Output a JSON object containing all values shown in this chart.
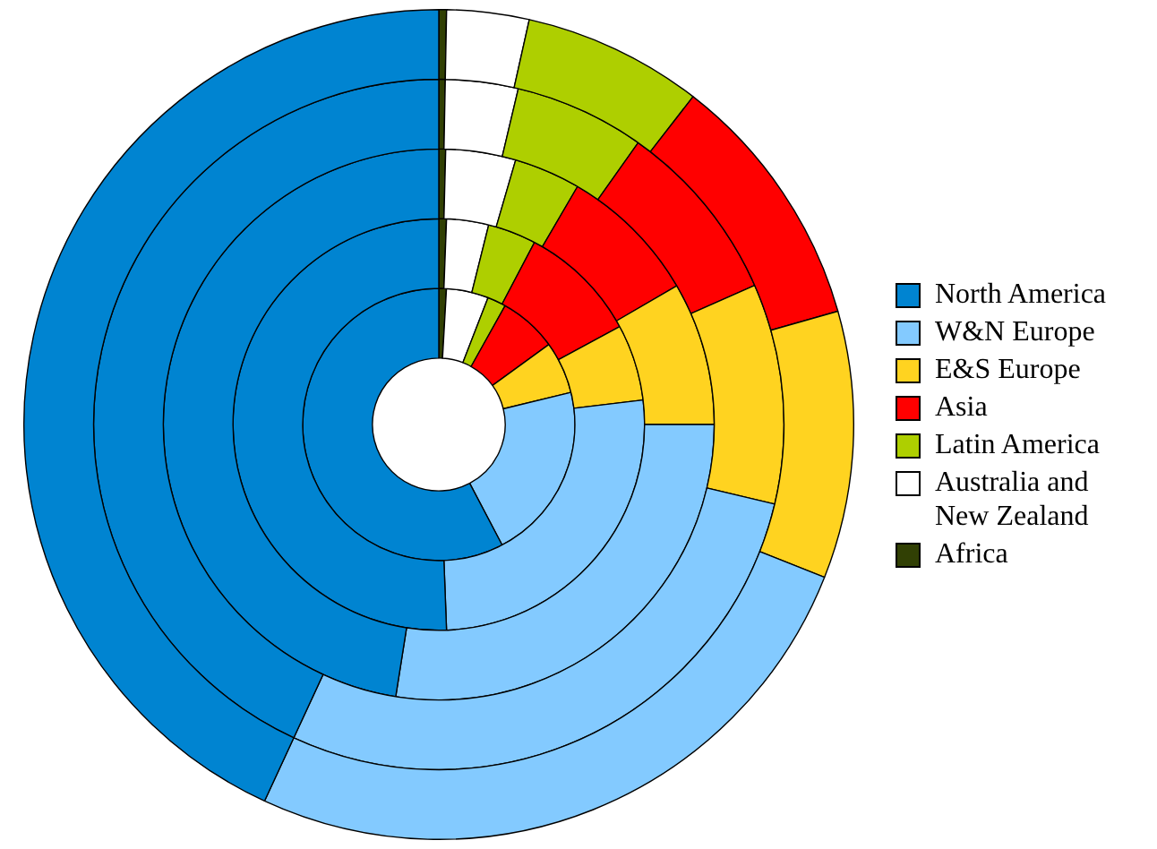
{
  "chart_data": {
    "type": "donut",
    "categories": [
      "Africa",
      "Australia and New Zealand",
      "Latin America",
      "Asia",
      "E&S Europe",
      "W&N Europe",
      "North America"
    ],
    "colors": [
      "#314004",
      "#ffffff",
      "#aecf00",
      "#ff0000",
      "#ffd320",
      "#83caff",
      "#0084d1"
    ],
    "series": [
      {
        "values": [
          0.3,
          3.2,
          7.0,
          10.1,
          10.4,
          25.9,
          43.1
        ]
      },
      {
        "values": [
          0.3,
          3.4,
          6.1,
          8.6,
          10.3,
          28.2,
          43.1
        ]
      },
      {
        "values": [
          0.4,
          4.1,
          3.9,
          8.2,
          8.4,
          27.5,
          47.5
        ]
      },
      {
        "values": [
          0.6,
          3.3,
          3.8,
          9.4,
          6.0,
          26.3,
          50.6
        ]
      },
      {
        "values": [
          0.9,
          5.0,
          2.2,
          6.9,
          6.2,
          21.1,
          57.7
        ]
      }
    ],
    "legend": "right"
  }
}
